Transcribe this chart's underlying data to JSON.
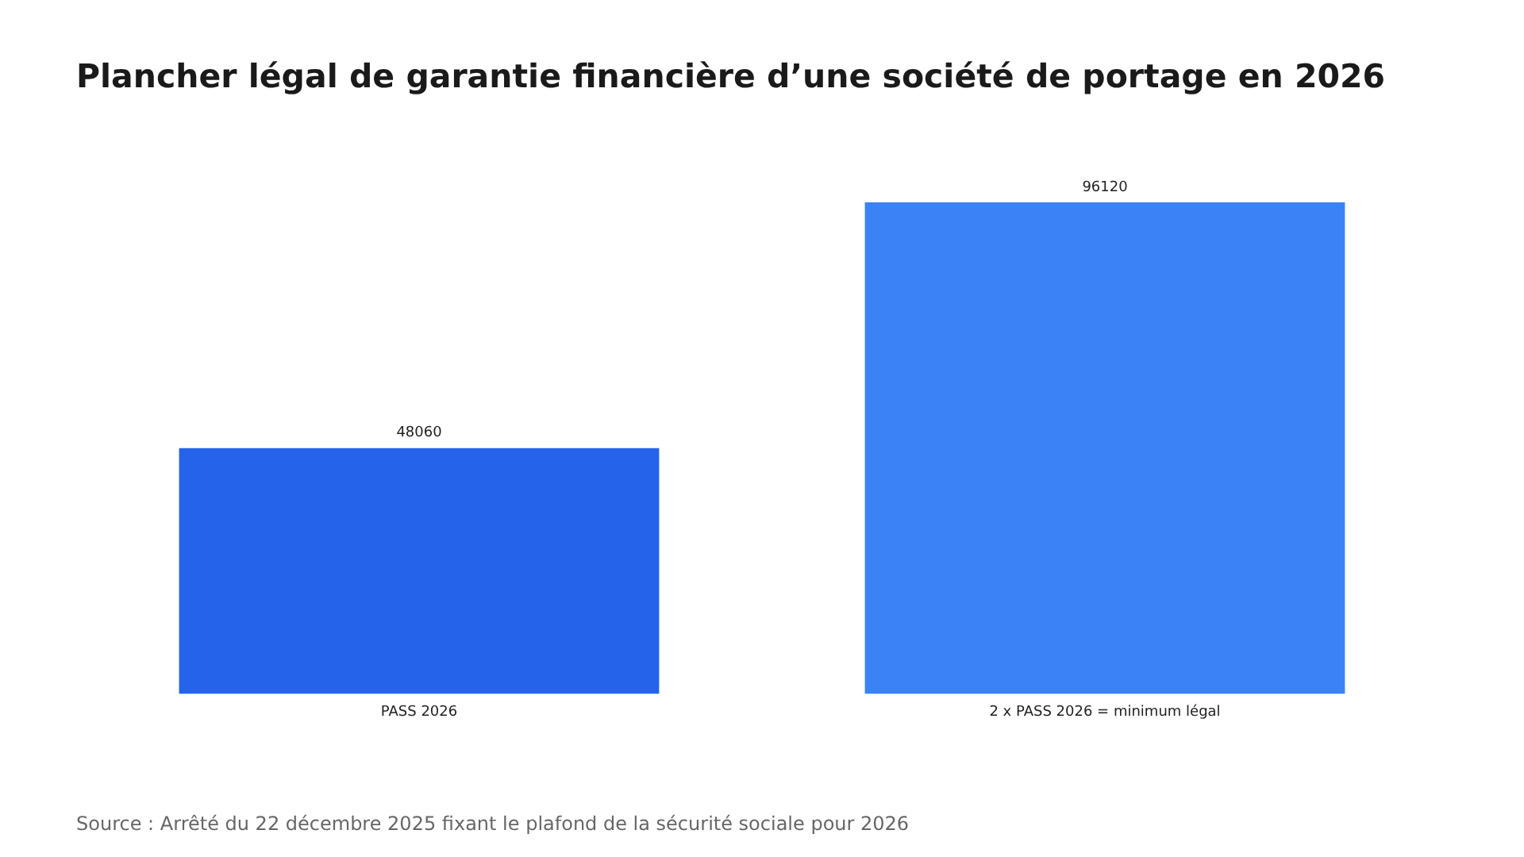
{
  "chart_data": {
    "type": "bar",
    "title": "Plancher légal de garantie financière d’une société de portage en 2026",
    "categories": [
      "PASS 2026",
      "2 x PASS 2026 = minimum légal"
    ],
    "values": [
      48060,
      96120
    ],
    "colors": [
      "#2563eb",
      "#3b82f6"
    ],
    "data_labels": true,
    "grid": false,
    "legend": false,
    "annotations": [
      "Source : Arrêté du 22 décembre 2025 fixant le plafond de la sécurité sociale pour 2026"
    ]
  }
}
